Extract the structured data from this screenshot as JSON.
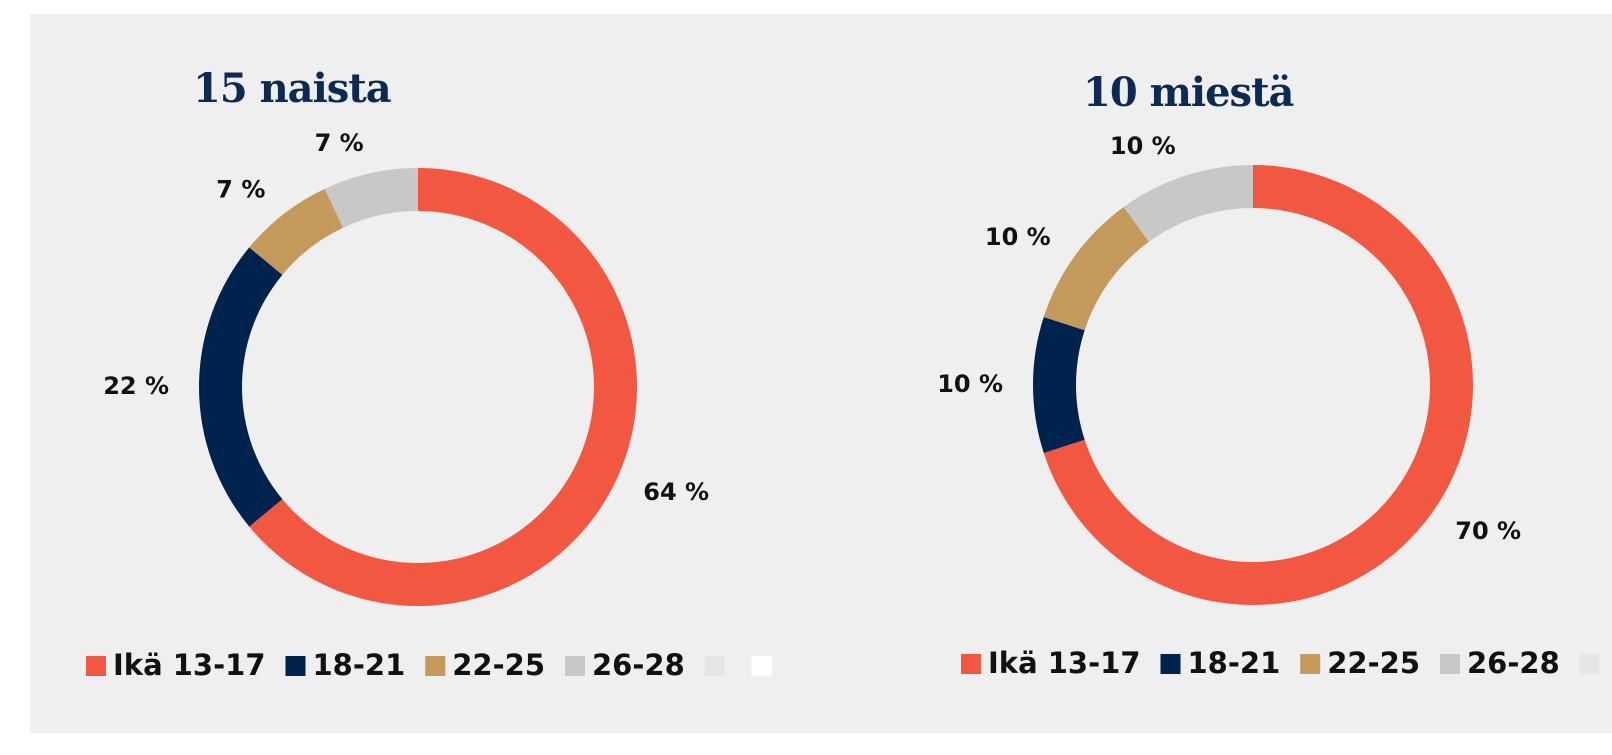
{
  "chart_data": [
    {
      "type": "donut",
      "title": "15 naista",
      "categories": [
        "Ikä 13-17",
        "18-21",
        "22-25",
        "26-28",
        null,
        null
      ],
      "values": [
        64,
        22,
        7,
        7,
        0,
        0
      ],
      "value_labels": [
        "64 %",
        "22 %",
        "7 %",
        "7 %",
        null,
        null
      ],
      "colors": [
        "#f25741",
        "#00234d",
        "#c49a5c",
        "#c8c8c6",
        "#e6e6e6",
        "#ffffff"
      ]
    },
    {
      "type": "donut",
      "title": "10 miestä",
      "categories": [
        "Ikä 13-17",
        "18-21",
        "22-25",
        "26-28",
        null
      ],
      "values": [
        70,
        10,
        10,
        10,
        0
      ],
      "value_labels": [
        "70 %",
        "10 %",
        "10 %",
        "10 %",
        null
      ],
      "colors": [
        "#f25741",
        "#00234d",
        "#c49a5c",
        "#c8c8c6",
        "#e6e6e6"
      ]
    }
  ]
}
